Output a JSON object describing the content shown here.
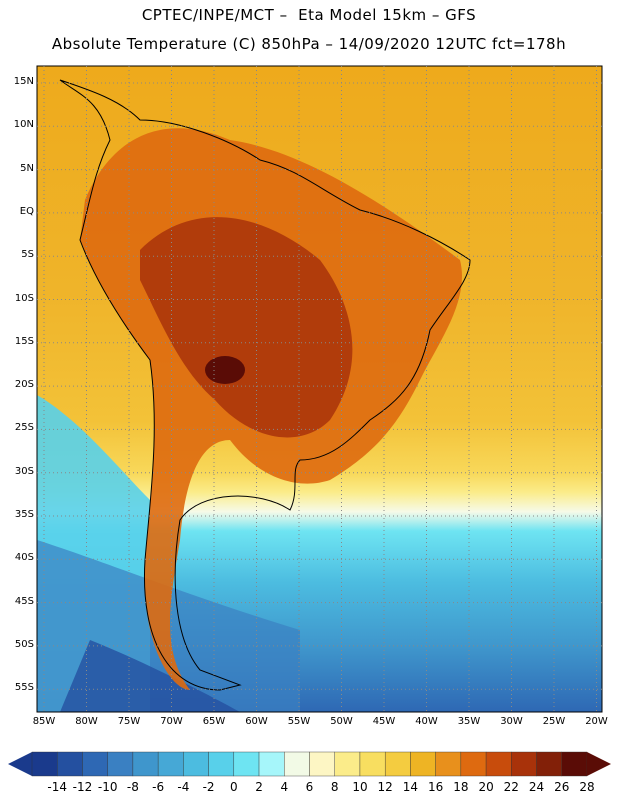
{
  "header": {
    "title_line1": "CPTEC/INPE/MCT –  Eta Model 15km – GFS",
    "title_line2": "Absolute Temperature (C) 850hPa – 14/09/2020 12UTC fct=178h"
  },
  "map": {
    "lat_labels": [
      "15N",
      "10N",
      "5N",
      "EQ",
      "5S",
      "10S",
      "15S",
      "20S",
      "25S",
      "30S",
      "35S",
      "40S",
      "45S",
      "50S",
      "55S"
    ],
    "lon_labels": [
      "85W",
      "80W",
      "75W",
      "70W",
      "65W",
      "60W",
      "55W",
      "50W",
      "45W",
      "40W",
      "35W",
      "30W",
      "25W",
      "20W"
    ],
    "region": "South America",
    "field": "Temperature 850hPa"
  },
  "colorbar": {
    "labels": [
      "-14",
      "-12",
      "-10",
      "-8",
      "-6",
      "-4",
      "-2",
      "0",
      "2",
      "4",
      "6",
      "8",
      "10",
      "12",
      "14",
      "16",
      "18",
      "20",
      "22",
      "24",
      "26",
      "28"
    ],
    "colors": [
      "#1a3a8c",
      "#2450a0",
      "#2e68b4",
      "#3a80c2",
      "#3f96cc",
      "#46a8d6",
      "#4cbce0",
      "#58d0ea",
      "#6ee4f2",
      "#a6f6fa",
      "#f2fae6",
      "#fdf6c4",
      "#fbec8a",
      "#f8de60",
      "#f4cc40",
      "#eeb424",
      "#e8901c",
      "#de6a10",
      "#c84c0c",
      "#a8320a",
      "#822008",
      "#5a0c06"
    ]
  }
}
